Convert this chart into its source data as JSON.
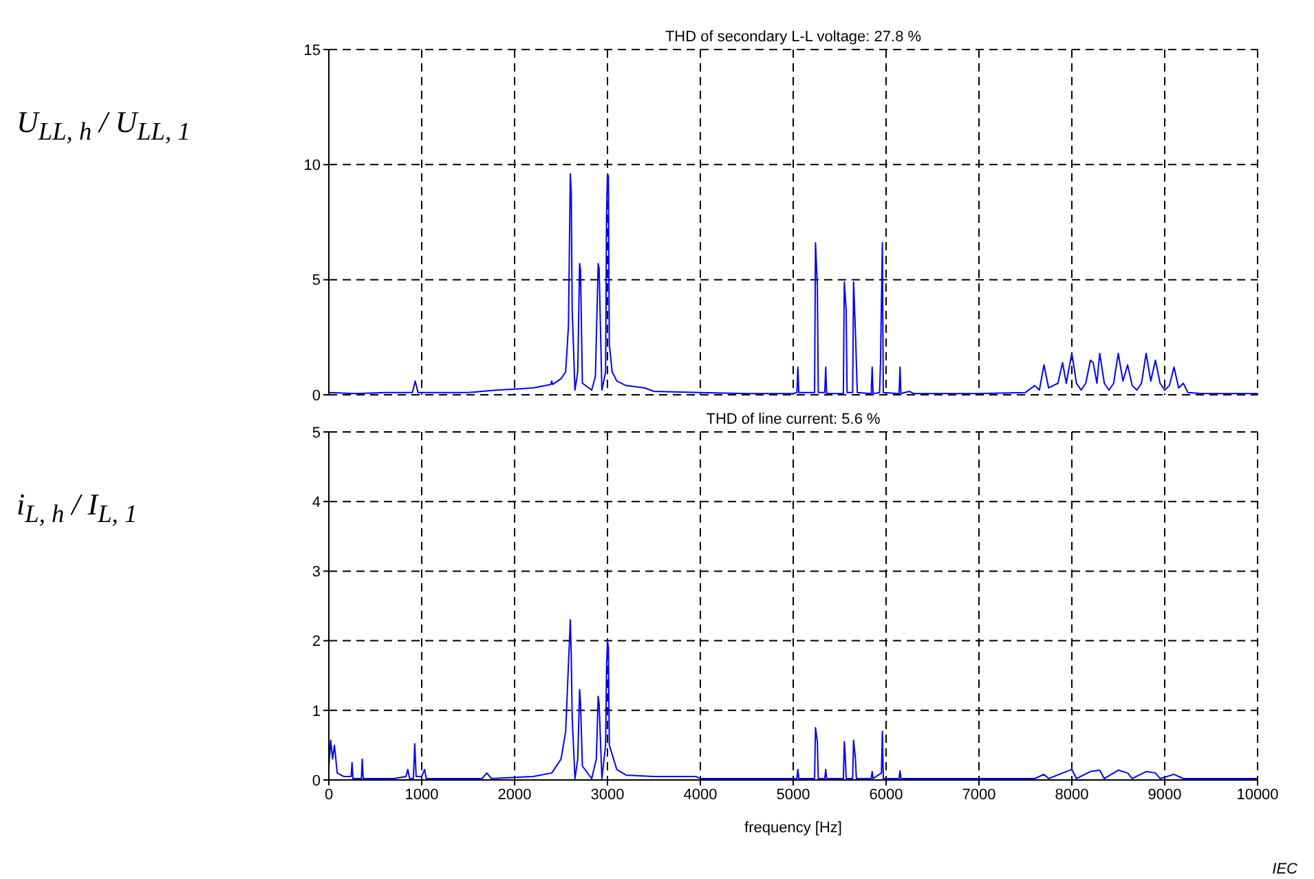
{
  "chart_data": [
    {
      "type": "line",
      "title": "THD of secondary L-L voltage: 27.8 %",
      "ylabel": "U$_{LL, h}$ / U$_{LL, 1}$",
      "xlim": [
        0,
        10000
      ],
      "ylim": [
        0,
        15
      ],
      "xticks": [
        0,
        1000,
        2000,
        3000,
        4000,
        5000,
        6000,
        7000,
        8000,
        9000,
        10000
      ],
      "yticks": [
        0,
        5,
        10,
        15
      ],
      "grid": true,
      "tick_labels": "y",
      "color": "#0000ff",
      "x": [
        0,
        300,
        600,
        900,
        930,
        960,
        1500,
        1800,
        2000,
        2200,
        2390,
        2400,
        2410,
        2500,
        2550,
        2580,
        2600,
        2610,
        2620,
        2650,
        2680,
        2700,
        2710,
        2730,
        2800,
        2830,
        2870,
        2900,
        2910,
        2940,
        2980,
        2990,
        3000,
        3010,
        3020,
        3050,
        3100,
        3200,
        3400,
        3500,
        4000,
        4500,
        5000,
        5040,
        5050,
        5060,
        5230,
        5240,
        5260,
        5270,
        5340,
        5350,
        5360,
        5540,
        5550,
        5570,
        5580,
        5640,
        5650,
        5670,
        5690,
        5840,
        5850,
        5860,
        5930,
        5940,
        5960,
        5970,
        6140,
        6150,
        6160,
        6250,
        6300,
        7000,
        7500,
        7600,
        7650,
        7700,
        7750,
        7850,
        7900,
        7940,
        8000,
        8050,
        8100,
        8150,
        8200,
        8230,
        8270,
        8300,
        8350,
        8400,
        8450,
        8500,
        8550,
        8600,
        8650,
        8700,
        8750,
        8800,
        8850,
        8900,
        8950,
        9000,
        9050,
        9100,
        9150,
        9200,
        9250,
        9400,
        10000
      ],
      "values": [
        0.1,
        0.05,
        0.1,
        0.1,
        0.6,
        0.1,
        0.1,
        0.2,
        0.25,
        0.3,
        0.45,
        0.6,
        0.45,
        0.7,
        1.0,
        3.0,
        9.6,
        8.8,
        3.7,
        0.2,
        1.0,
        5.7,
        5.4,
        0.5,
        0.3,
        0.2,
        0.8,
        5.7,
        5.5,
        0.2,
        1.0,
        7.8,
        9.6,
        9.5,
        2.2,
        1.0,
        0.6,
        0.4,
        0.3,
        0.15,
        0.1,
        0.05,
        0.05,
        0.1,
        1.2,
        0.1,
        0.1,
        6.6,
        4.7,
        0.1,
        0.1,
        1.2,
        0.05,
        0.05,
        4.9,
        3.7,
        0.1,
        0.1,
        4.9,
        2.7,
        0.1,
        0.05,
        1.2,
        0.05,
        0.1,
        1.4,
        6.6,
        0.1,
        0.05,
        1.2,
        0.05,
        0.15,
        0.05,
        0.05,
        0.1,
        0.4,
        0.2,
        1.3,
        0.3,
        0.5,
        1.4,
        0.5,
        1.8,
        0.5,
        0.2,
        0.5,
        1.5,
        1.4,
        0.5,
        1.8,
        0.5,
        0.2,
        0.5,
        1.8,
        0.6,
        1.3,
        0.4,
        0.2,
        0.5,
        1.8,
        0.6,
        1.5,
        0.5,
        0.2,
        0.4,
        1.2,
        0.3,
        0.5,
        0.1,
        0.05,
        0.05
      ]
    },
    {
      "type": "line",
      "title": "THD of line current: 5.6 %",
      "ylabel": "i$_{L, h}$ / I$_{L, 1}$",
      "xlabel": "frequency [Hz]",
      "xlim": [
        0,
        10000
      ],
      "ylim": [
        0,
        5
      ],
      "xticks": [
        0,
        1000,
        2000,
        3000,
        4000,
        5000,
        6000,
        7000,
        8000,
        9000,
        10000
      ],
      "yticks": [
        0,
        1,
        2,
        3,
        4,
        5
      ],
      "grid": true,
      "color": "#0000ff",
      "annotations": [
        "IEC"
      ],
      "x": [
        0,
        20,
        40,
        60,
        90,
        160,
        240,
        250,
        260,
        350,
        360,
        370,
        700,
        830,
        850,
        870,
        910,
        925,
        940,
        1000,
        1030,
        1050,
        1650,
        1700,
        1750,
        2200,
        2400,
        2500,
        2550,
        2600,
        2610,
        2620,
        2650,
        2680,
        2700,
        2710,
        2730,
        2830,
        2880,
        2900,
        2910,
        2940,
        2980,
        2990,
        3000,
        3010,
        3020,
        3100,
        3200,
        3500,
        3950,
        4000,
        5040,
        5050,
        5060,
        5230,
        5240,
        5260,
        5270,
        5340,
        5350,
        5360,
        5540,
        5550,
        5560,
        5570,
        5640,
        5650,
        5670,
        5680,
        5840,
        5850,
        5860,
        5950,
        5960,
        5970,
        6140,
        6150,
        6160,
        7600,
        7700,
        7750,
        7900,
        8000,
        8050,
        8200,
        8300,
        8350,
        8500,
        8600,
        8650,
        8800,
        8900,
        8950,
        9100,
        9200,
        10000
      ],
      "values": [
        0.2,
        0.57,
        0.3,
        0.5,
        0.1,
        0.05,
        0.05,
        0.25,
        0.02,
        0.02,
        0.3,
        0.02,
        0.02,
        0.05,
        0.15,
        0.02,
        0.02,
        0.52,
        0.05,
        0.05,
        0.15,
        0.02,
        0.02,
        0.1,
        0.02,
        0.05,
        0.1,
        0.3,
        0.7,
        2.3,
        1.8,
        0.9,
        0.02,
        0.3,
        1.3,
        1.1,
        0.2,
        0.02,
        0.3,
        1.2,
        1.1,
        0.02,
        0.5,
        1.6,
        2.0,
        1.9,
        0.5,
        0.15,
        0.07,
        0.05,
        0.05,
        0.02,
        0.02,
        0.15,
        0.02,
        0.02,
        0.75,
        0.55,
        0.02,
        0.02,
        0.15,
        0.02,
        0.02,
        0.55,
        0.35,
        0.02,
        0.02,
        0.57,
        0.3,
        0.02,
        0.02,
        0.12,
        0.02,
        0.1,
        0.7,
        0.02,
        0.02,
        0.13,
        0.02,
        0.02,
        0.08,
        0.02,
        0.1,
        0.15,
        0.02,
        0.12,
        0.14,
        0.02,
        0.14,
        0.1,
        0.02,
        0.12,
        0.1,
        0.02,
        0.08,
        0.02,
        0.02
      ]
    }
  ]
}
